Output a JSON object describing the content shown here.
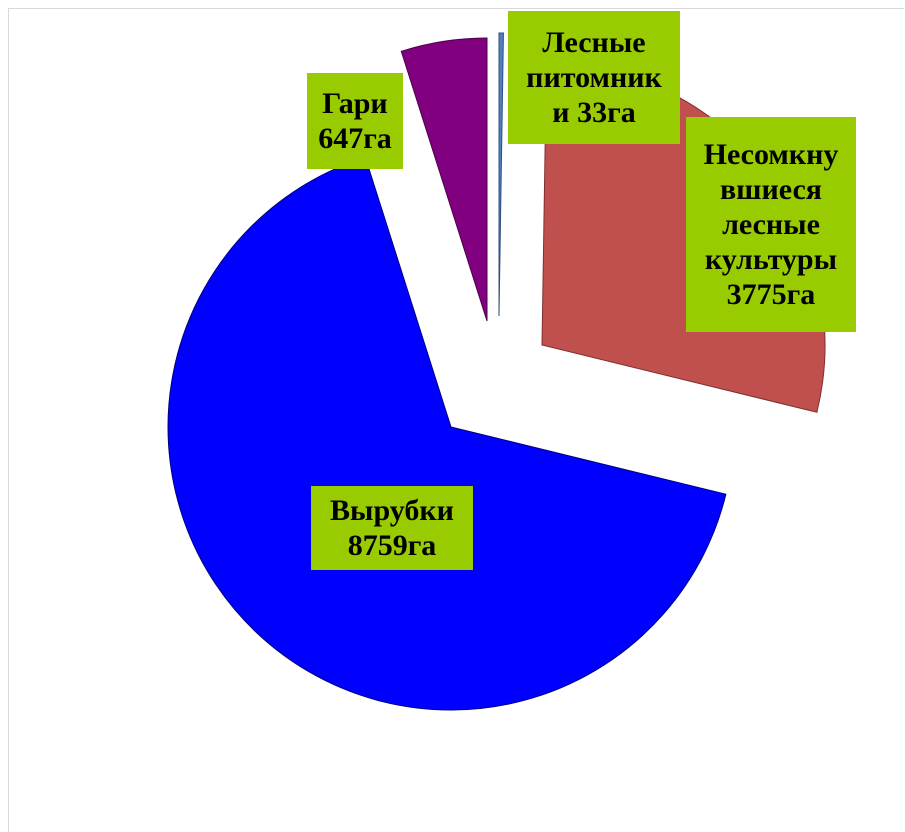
{
  "chart_data": {
    "type": "pie",
    "exploded": true,
    "legend": "none",
    "slices": [
      {
        "name": "Лесные питомники",
        "value": 33,
        "color": "#4f81bd"
      },
      {
        "name": "Несомкнувшиеся лесные культуры",
        "value": 3775,
        "color": "#c0504d"
      },
      {
        "name": "Вырубки",
        "value": 8759,
        "color": "#0000ff"
      },
      {
        "name": "Гари",
        "value": 647,
        "color": "#800080"
      }
    ],
    "labels": {
      "nurseries": "Лесные\nпитомник\nи 33га",
      "plantations": "Несомкну\nвшиеся\nлесные\nкультуры\n3775га",
      "cuts": "Вырубки\n8759га",
      "burns": "Гари\n647га"
    },
    "label_background": "#99cc00"
  }
}
